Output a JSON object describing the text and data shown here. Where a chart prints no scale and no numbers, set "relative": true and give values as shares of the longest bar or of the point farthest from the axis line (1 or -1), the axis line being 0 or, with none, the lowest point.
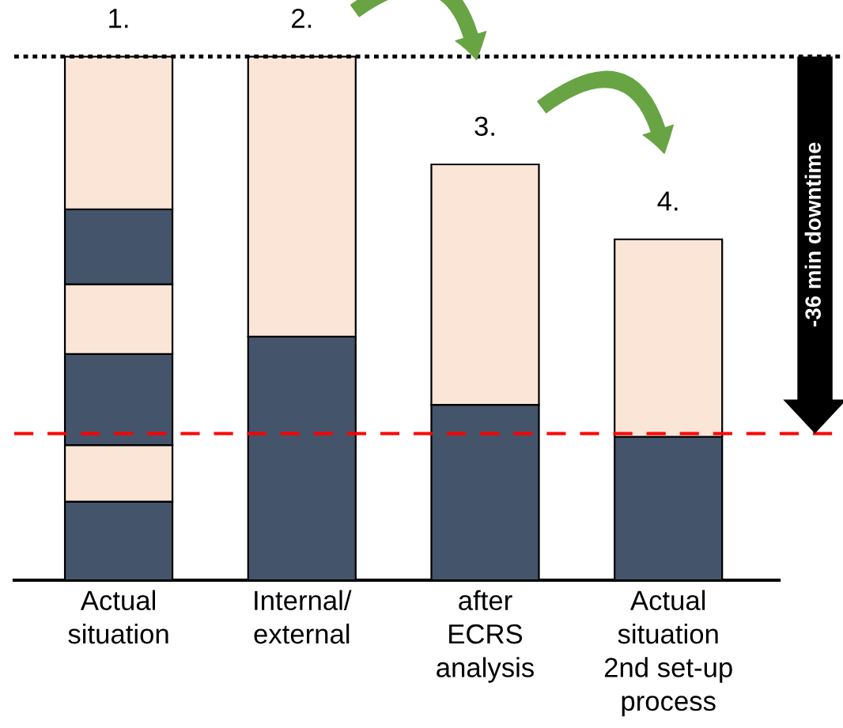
{
  "chart_data": {
    "type": "bar",
    "stacked": true,
    "relative": true,
    "categories": [
      "Actual\nsituation",
      "Internal/\nexternal",
      "after\nECRS\nanalysis",
      "Actual\nsituation\n2nd set-up\nprocess"
    ],
    "series": [
      {
        "color": "#44546a",
        "values": [
          0.15,
          0.465,
          0.335,
          0.274
        ]
      },
      {
        "color": "#fbe5d6",
        "values": [
          0.108,
          0.535,
          0.459,
          0.377
        ]
      },
      {
        "color": "#44546a",
        "values": [
          0.174,
          null,
          null,
          null
        ]
      },
      {
        "color": "#fbe5d6",
        "values": [
          0.133,
          null,
          null,
          null
        ]
      },
      {
        "color": "#44546a",
        "values": [
          0.143,
          null,
          null,
          null
        ]
      },
      {
        "color": "#fbe5d6",
        "values": [
          0.292,
          null,
          null,
          null
        ]
      }
    ],
    "ref_lines": [
      {
        "axis": "y",
        "value": 1.0,
        "color": "#000000",
        "line_style": "dotted"
      },
      {
        "axis": "y",
        "value": 0.28,
        "color": "#ff0000",
        "line_style": "dashed"
      }
    ],
    "annotations": [
      {
        "text": "1.",
        "x": "Actual\nsituation",
        "y": 1.0
      },
      {
        "text": "2.",
        "x": "Internal/\nexternal",
        "y": 1.0
      },
      {
        "text": "3.",
        "x": "after\nECRS\nanalysis",
        "y": 0.794
      },
      {
        "text": "4.",
        "x": "Actual\nsituation\n2nd set-up\nprocess",
        "y": 0.651
      },
      "-36 min downtime"
    ]
  }
}
